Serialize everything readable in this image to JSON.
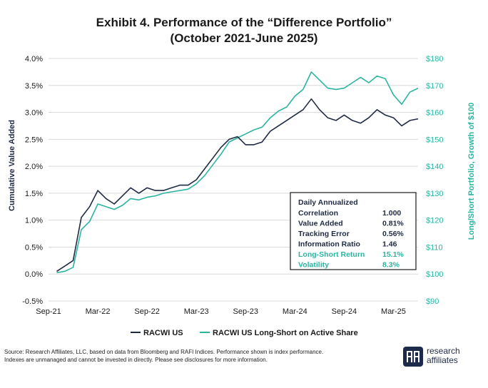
{
  "title_line1": "Exhibit 4. Performance of the “Difference Portfolio”",
  "title_line2": "(October 2021-June 2025)",
  "source_line1": "Source: Research Affiliates, LLC, based on data from Bloomberg and RAFI Indices. Performance shown is index performance.",
  "source_line2": "Indexes are unmanaged and cannot be invested in directly. Please see disclosures for more information.",
  "logo_line1": "research",
  "logo_line2": "affiliates",
  "colors": {
    "navy": "#1f2a44",
    "teal": "#2bb5a0",
    "grid": "#d9d9d9"
  },
  "stats": {
    "header": "Daily Annualized",
    "rows": [
      {
        "label": "Correlation",
        "value": "1.000",
        "teal": false
      },
      {
        "label": "Value Added",
        "value": "0.81%",
        "teal": false
      },
      {
        "label": "Tracking Error",
        "value": "0.56%",
        "teal": false
      },
      {
        "label": "Information Ratio",
        "value": "1.46",
        "teal": false
      },
      {
        "label": "Long-Short Return",
        "value": "15.1%",
        "teal": true
      },
      {
        "label": "Volatility",
        "value": "8.3%",
        "teal": true
      }
    ]
  },
  "chart_data": {
    "type": "line",
    "xlabel": "",
    "ylabel": "Cumulative Value Added",
    "y2label": "Long/Short Portfolio, Growth of $100",
    "x_ticks": [
      "Sep-21",
      "Mar-22",
      "Sep-22",
      "Mar-23",
      "Sep-23",
      "Mar-24",
      "Sep-24",
      "Mar-25"
    ],
    "y_ticks": [
      "-0.5%",
      "0.0%",
      "0.5%",
      "1.0%",
      "1.5%",
      "2.0%",
      "2.5%",
      "3.0%",
      "3.5%",
      "4.0%"
    ],
    "y2_ticks": [
      "$90",
      "$100",
      "$110",
      "$120",
      "$130",
      "$140",
      "$150",
      "$160",
      "$170",
      "$180"
    ],
    "ylim": [
      -0.5,
      4.0
    ],
    "y2lim": [
      90,
      180
    ],
    "grid": true,
    "legend_position": "bottom",
    "series": [
      {
        "name": "RACWI US",
        "axis": "left",
        "unit": "%",
        "points": [
          [
            "2021-10",
            0.05
          ],
          [
            "2021-11",
            0.15
          ],
          [
            "2021-12",
            0.25
          ],
          [
            "2022-01",
            1.05
          ],
          [
            "2022-02",
            1.25
          ],
          [
            "2022-03",
            1.55
          ],
          [
            "2022-04",
            1.4
          ],
          [
            "2022-05",
            1.3
          ],
          [
            "2022-06",
            1.45
          ],
          [
            "2022-07",
            1.6
          ],
          [
            "2022-08",
            1.5
          ],
          [
            "2022-09",
            1.6
          ],
          [
            "2022-10",
            1.55
          ],
          [
            "2022-11",
            1.55
          ],
          [
            "2022-12",
            1.6
          ],
          [
            "2023-01",
            1.65
          ],
          [
            "2023-02",
            1.65
          ],
          [
            "2023-03",
            1.75
          ],
          [
            "2023-04",
            1.95
          ],
          [
            "2023-05",
            2.15
          ],
          [
            "2023-06",
            2.35
          ],
          [
            "2023-07",
            2.5
          ],
          [
            "2023-08",
            2.55
          ],
          [
            "2023-09",
            2.4
          ],
          [
            "2023-10",
            2.4
          ],
          [
            "2023-11",
            2.45
          ],
          [
            "2023-12",
            2.65
          ],
          [
            "2024-01",
            2.75
          ],
          [
            "2024-02",
            2.85
          ],
          [
            "2024-03",
            2.95
          ],
          [
            "2024-04",
            3.05
          ],
          [
            "2024-05",
            3.25
          ],
          [
            "2024-06",
            3.05
          ],
          [
            "2024-07",
            2.9
          ],
          [
            "2024-08",
            2.85
          ],
          [
            "2024-09",
            2.95
          ],
          [
            "2024-10",
            2.85
          ],
          [
            "2024-11",
            2.8
          ],
          [
            "2024-12",
            2.9
          ],
          [
            "2025-01",
            3.05
          ],
          [
            "2025-02",
            2.95
          ],
          [
            "2025-03",
            2.9
          ],
          [
            "2025-04",
            2.75
          ],
          [
            "2025-05",
            2.85
          ],
          [
            "2025-06",
            2.88
          ]
        ]
      },
      {
        "name": "RACWI US Long-Short on Active Share",
        "axis": "right",
        "unit": "$",
        "points": [
          [
            "2021-10",
            100.5
          ],
          [
            "2021-11",
            101.0
          ],
          [
            "2021-12",
            102.5
          ],
          [
            "2022-01",
            116.5
          ],
          [
            "2022-02",
            119.5
          ],
          [
            "2022-03",
            126.0
          ],
          [
            "2022-04",
            125.0
          ],
          [
            "2022-05",
            124.0
          ],
          [
            "2022-06",
            125.5
          ],
          [
            "2022-07",
            128.0
          ],
          [
            "2022-08",
            127.5
          ],
          [
            "2022-09",
            128.5
          ],
          [
            "2022-10",
            129.0
          ],
          [
            "2022-11",
            130.0
          ],
          [
            "2022-12",
            130.5
          ],
          [
            "2023-01",
            131.0
          ],
          [
            "2023-02",
            131.5
          ],
          [
            "2023-03",
            133.5
          ],
          [
            "2023-04",
            136.5
          ],
          [
            "2023-05",
            140.5
          ],
          [
            "2023-06",
            144.5
          ],
          [
            "2023-07",
            149.0
          ],
          [
            "2023-08",
            150.5
          ],
          [
            "2023-09",
            152.0
          ],
          [
            "2023-10",
            153.5
          ],
          [
            "2023-11",
            154.5
          ],
          [
            "2023-12",
            158.0
          ],
          [
            "2024-01",
            160.5
          ],
          [
            "2024-02",
            162.0
          ],
          [
            "2024-03",
            166.0
          ],
          [
            "2024-04",
            168.5
          ],
          [
            "2024-05",
            175.0
          ],
          [
            "2024-06",
            172.0
          ],
          [
            "2024-07",
            169.0
          ],
          [
            "2024-08",
            168.5
          ],
          [
            "2024-09",
            169.0
          ],
          [
            "2024-10",
            171.0
          ],
          [
            "2024-11",
            173.0
          ],
          [
            "2024-12",
            171.0
          ],
          [
            "2025-01",
            173.5
          ],
          [
            "2025-02",
            172.5
          ],
          [
            "2025-03",
            166.5
          ],
          [
            "2025-04",
            163.0
          ],
          [
            "2025-05",
            167.5
          ],
          [
            "2025-06",
            169.0
          ]
        ]
      }
    ]
  }
}
